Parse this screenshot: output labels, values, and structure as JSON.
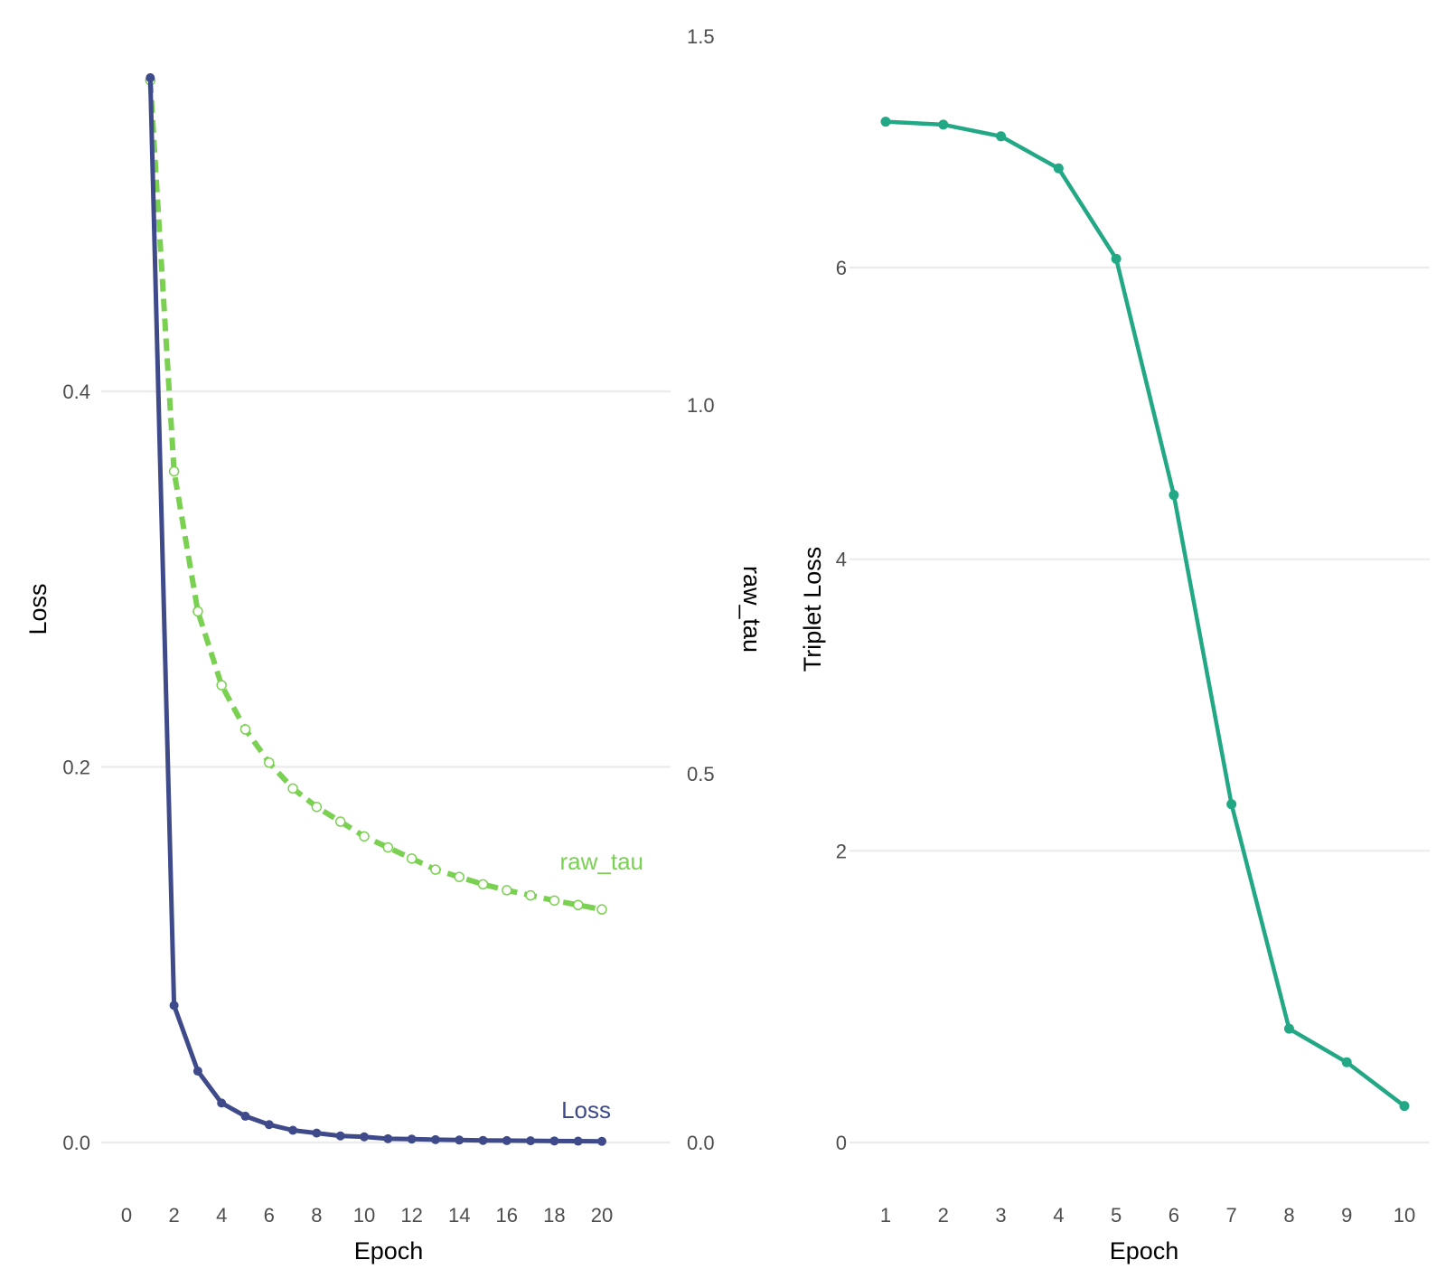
{
  "colors": {
    "loss": "#3e4a89",
    "raw_tau": "#7ad151",
    "triplet": "#22a884",
    "grid": "#ebebeb",
    "tick_text": "#4d4d4d"
  },
  "chart_data": [
    {
      "type": "line",
      "xlabel": "Epoch",
      "ylabel": "Loss",
      "ylabel_right": "raw_tau",
      "xlim": [
        0,
        20
      ],
      "ylim": [
        0,
        0.57
      ],
      "ylim_right": [
        0,
        1.5
      ],
      "x_ticks": [
        0,
        2,
        4,
        6,
        8,
        10,
        12,
        14,
        16,
        18,
        20
      ],
      "y_ticks": [
        0.0,
        0.2,
        0.4
      ],
      "y_tick_labels": [
        "0.0",
        "0.2",
        "0.4"
      ],
      "y_ticks_right": [
        0.0,
        0.5,
        1.0,
        1.5
      ],
      "y_tick_labels_right": [
        "0.0",
        "0.5",
        "1.0",
        "1.5"
      ],
      "grid": true,
      "series": [
        {
          "name": "Loss",
          "label": "Loss",
          "axis": "left",
          "style": "solid",
          "x": [
            1,
            2,
            3,
            4,
            5,
            6,
            7,
            8,
            9,
            10,
            11,
            12,
            13,
            14,
            15,
            16,
            17,
            18,
            19,
            20
          ],
          "values": [
            0.567,
            0.073,
            0.038,
            0.021,
            0.014,
            0.0095,
            0.0065,
            0.005,
            0.0035,
            0.003,
            0.002,
            0.0018,
            0.0015,
            0.0013,
            0.0011,
            0.001,
            0.0009,
            0.0008,
            0.0007,
            0.0006
          ]
        },
        {
          "name": "raw_tau",
          "label": "raw_tau",
          "axis": "right",
          "style": "dashed",
          "x": [
            1,
            2,
            3,
            4,
            5,
            6,
            7,
            8,
            9,
            10,
            11,
            12,
            13,
            14,
            15,
            16,
            17,
            18,
            19,
            20
          ],
          "values": [
            1.44,
            0.91,
            0.72,
            0.62,
            0.56,
            0.515,
            0.48,
            0.455,
            0.435,
            0.415,
            0.4,
            0.385,
            0.37,
            0.36,
            0.35,
            0.342,
            0.335,
            0.328,
            0.322,
            0.316
          ]
        }
      ]
    },
    {
      "type": "line",
      "xlabel": "Epoch",
      "ylabel": "Triplet Loss",
      "xlim": [
        1,
        10
      ],
      "ylim": [
        0,
        7.3
      ],
      "x_ticks": [
        1,
        2,
        3,
        4,
        5,
        6,
        7,
        8,
        9,
        10
      ],
      "y_ticks": [
        0,
        2,
        4,
        6
      ],
      "y_tick_labels": [
        "0",
        "2",
        "4",
        "6"
      ],
      "grid": true,
      "series": [
        {
          "name": "Triplet Loss",
          "x": [
            1,
            2,
            3,
            4,
            5,
            6,
            7,
            8,
            9,
            10
          ],
          "values": [
            7.0,
            6.98,
            6.9,
            6.68,
            6.06,
            4.44,
            2.32,
            0.78,
            0.55,
            0.25
          ]
        }
      ]
    }
  ]
}
